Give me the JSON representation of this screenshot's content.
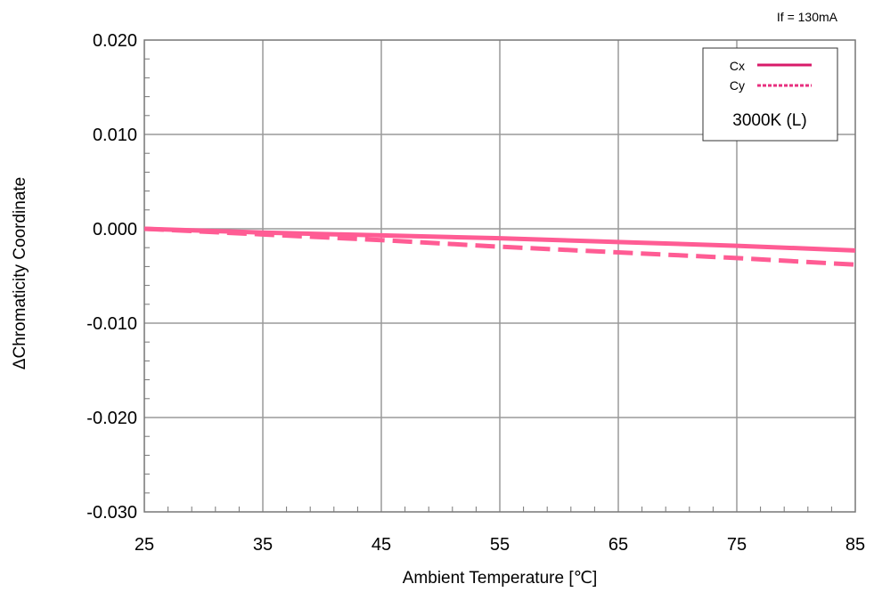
{
  "chart_data": {
    "type": "line",
    "title": "",
    "condition_label": "If = 130mA",
    "annotation": "3000K (L)",
    "xlabel": "Ambient Temperature [℃]",
    "ylabel": "ΔChromaticity Coordinate",
    "xlim": [
      25,
      85
    ],
    "ylim": [
      -0.03,
      0.02
    ],
    "x_ticks": [
      "25",
      "35",
      "45",
      "55",
      "65",
      "75",
      "85"
    ],
    "y_ticks": [
      "0.020",
      "0.010",
      "0.000",
      "-0.010",
      "-0.020",
      "-0.030"
    ],
    "grid": true,
    "legend_position": "top-right",
    "x": [
      25,
      35,
      45,
      55,
      65,
      75,
      85
    ],
    "series": [
      {
        "name": "Cx",
        "values": [
          0.0,
          -0.0004,
          -0.0007,
          -0.001,
          -0.0014,
          -0.0018,
          -0.0023
        ],
        "style": "solid",
        "color": "#ff5c94"
      },
      {
        "name": "Cy",
        "values": [
          0.0,
          -0.0006,
          -0.0012,
          -0.0019,
          -0.0025,
          -0.0031,
          -0.0038
        ],
        "style": "dashed",
        "color": "#ff5c94"
      }
    ],
    "legend_colors": {
      "Cx": "#d81b6a",
      "Cy": "#e8307f"
    }
  }
}
